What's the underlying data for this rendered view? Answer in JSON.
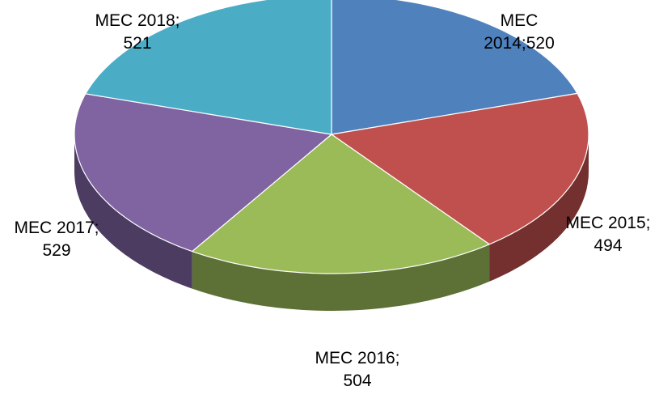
{
  "chart_data": {
    "type": "pie3d",
    "values": [
      520,
      494,
      504,
      529,
      521
    ],
    "value_labels": [
      "MEC 2014;520",
      "MEC 2015; 494",
      "MEC 2016; 504",
      "MEC 2017; 529",
      "MEC 2018; 521"
    ],
    "colors": [
      "#4f81bd",
      "#c0504d",
      "#9bbb59",
      "#8064a2",
      "#4bacc6"
    ]
  }
}
